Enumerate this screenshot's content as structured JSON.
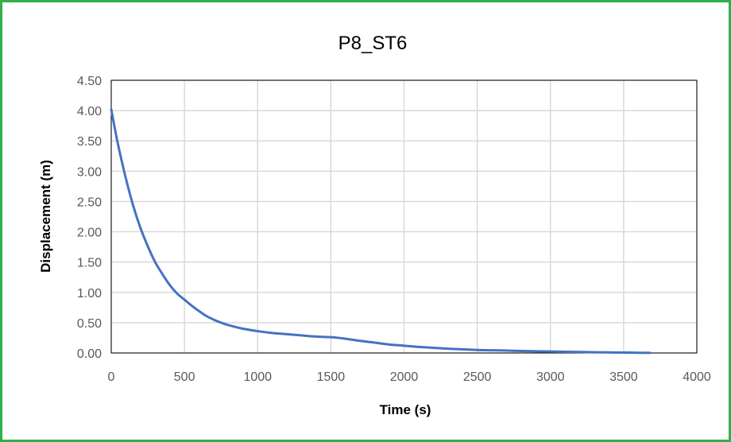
{
  "chart_data": {
    "type": "line",
    "title": "P8_ST6",
    "xlabel": "Time (s)",
    "ylabel": "Displacement (m)",
    "xlim": [
      0,
      4000
    ],
    "ylim": [
      0,
      4.5
    ],
    "x_ticks": [
      "0",
      "500",
      "1000",
      "1500",
      "2000",
      "2500",
      "3000",
      "3500",
      "4000"
    ],
    "y_ticks": [
      "0.00",
      "0.50",
      "1.00",
      "1.50",
      "2.00",
      "2.50",
      "3.00",
      "3.50",
      "4.00",
      "4.50"
    ],
    "grid": true,
    "legend": "none",
    "series": [
      {
        "color": "#4472c4",
        "x": [
          0,
          25,
          50,
          100,
          150,
          200,
          250,
          300,
          350,
          400,
          450,
          500,
          550,
          600,
          650,
          700,
          750,
          800,
          900,
          1000,
          1100,
          1200,
          1300,
          1400,
          1500,
          1550,
          1600,
          1700,
          1800,
          1900,
          2000,
          2100,
          2200,
          2300,
          2400,
          2500,
          2600,
          2700,
          2800,
          2900,
          3000,
          3100,
          3200,
          3300,
          3400,
          3500,
          3600,
          3680
        ],
        "y": [
          4.02,
          3.7,
          3.4,
          2.88,
          2.43,
          2.06,
          1.76,
          1.5,
          1.3,
          1.12,
          0.98,
          0.88,
          0.78,
          0.69,
          0.61,
          0.55,
          0.5,
          0.46,
          0.4,
          0.36,
          0.33,
          0.31,
          0.29,
          0.27,
          0.26,
          0.25,
          0.235,
          0.2,
          0.17,
          0.14,
          0.12,
          0.1,
          0.085,
          0.07,
          0.06,
          0.05,
          0.045,
          0.04,
          0.033,
          0.028,
          0.024,
          0.02,
          0.016,
          0.012,
          0.009,
          0.007,
          0.004,
          0.002
        ]
      }
    ]
  }
}
